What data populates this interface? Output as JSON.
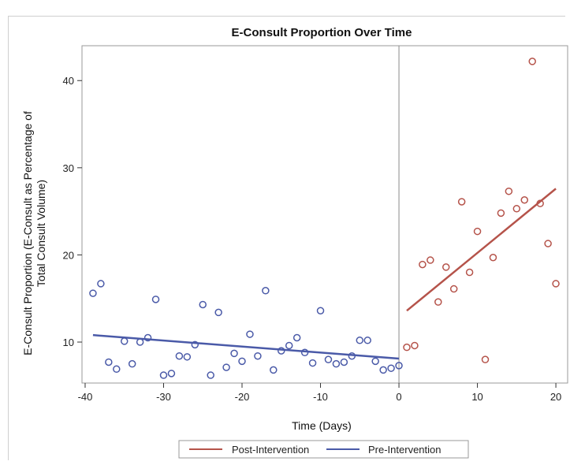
{
  "chart_data": {
    "type": "scatter",
    "title": "E-Consult Proportion Over Time",
    "xlabel": "Time (Days)",
    "ylabel_line1": "E-Consult Proportion (E-Consult as Percentage of",
    "ylabel_line2": "Total Consult Volume)",
    "xlim": [
      -40.4,
      21.5
    ],
    "ylim": [
      5.3,
      44.0
    ],
    "xticks": [
      -40,
      -30,
      -20,
      -10,
      0,
      10,
      20
    ],
    "yticks": [
      10,
      20,
      30,
      40
    ],
    "intervention_x": 0,
    "legend_position": "bottom-center",
    "series": [
      {
        "name": "Pre-Intervention",
        "color": "#4a5aa8",
        "points": [
          [
            -39,
            15.6
          ],
          [
            -38,
            16.7
          ],
          [
            -37,
            7.7
          ],
          [
            -36,
            6.9
          ],
          [
            -35,
            10.1
          ],
          [
            -34,
            7.5
          ],
          [
            -33,
            10.0
          ],
          [
            -32,
            10.5
          ],
          [
            -31,
            14.9
          ],
          [
            -30,
            6.2
          ],
          [
            -29,
            6.4
          ],
          [
            -28,
            8.4
          ],
          [
            -27,
            8.3
          ],
          [
            -26,
            9.7
          ],
          [
            -25,
            14.3
          ],
          [
            -24,
            6.2
          ],
          [
            -23,
            13.4
          ],
          [
            -22,
            7.1
          ],
          [
            -21,
            8.7
          ],
          [
            -20,
            7.8
          ],
          [
            -19,
            10.9
          ],
          [
            -18,
            8.4
          ],
          [
            -17,
            15.9
          ],
          [
            -16,
            6.8
          ],
          [
            -15,
            9.0
          ],
          [
            -14,
            9.6
          ],
          [
            -13,
            10.5
          ],
          [
            -12,
            8.8
          ],
          [
            -11,
            7.6
          ],
          [
            -10,
            13.6
          ],
          [
            -9,
            8.0
          ],
          [
            -8,
            7.5
          ],
          [
            -7,
            7.7
          ],
          [
            -6,
            8.4
          ],
          [
            -5,
            10.2
          ],
          [
            -4,
            10.2
          ],
          [
            -3,
            7.8
          ],
          [
            -2,
            6.8
          ],
          [
            -1,
            7.0
          ],
          [
            0,
            7.3
          ]
        ],
        "fit": [
          [
            -39,
            10.8
          ],
          [
            0,
            8.1
          ]
        ]
      },
      {
        "name": "Post-Intervention",
        "color": "#b5534a",
        "points": [
          [
            1,
            9.4
          ],
          [
            2,
            9.6
          ],
          [
            3,
            18.9
          ],
          [
            4,
            19.4
          ],
          [
            5,
            14.6
          ],
          [
            6,
            18.6
          ],
          [
            7,
            16.1
          ],
          [
            8,
            26.1
          ],
          [
            9,
            18.0
          ],
          [
            10,
            22.7
          ],
          [
            11,
            8.0
          ],
          [
            12,
            19.7
          ],
          [
            13,
            24.8
          ],
          [
            14,
            27.3
          ],
          [
            15,
            25.3
          ],
          [
            16,
            26.3
          ],
          [
            17,
            42.2
          ],
          [
            18,
            25.9
          ],
          [
            19,
            21.3
          ],
          [
            20,
            16.7
          ]
        ],
        "fit": [
          [
            1,
            13.6
          ],
          [
            20,
            27.6
          ]
        ]
      }
    ]
  },
  "legend": {
    "post_label": "Post-Intervention",
    "pre_label": "Pre-Intervention"
  }
}
